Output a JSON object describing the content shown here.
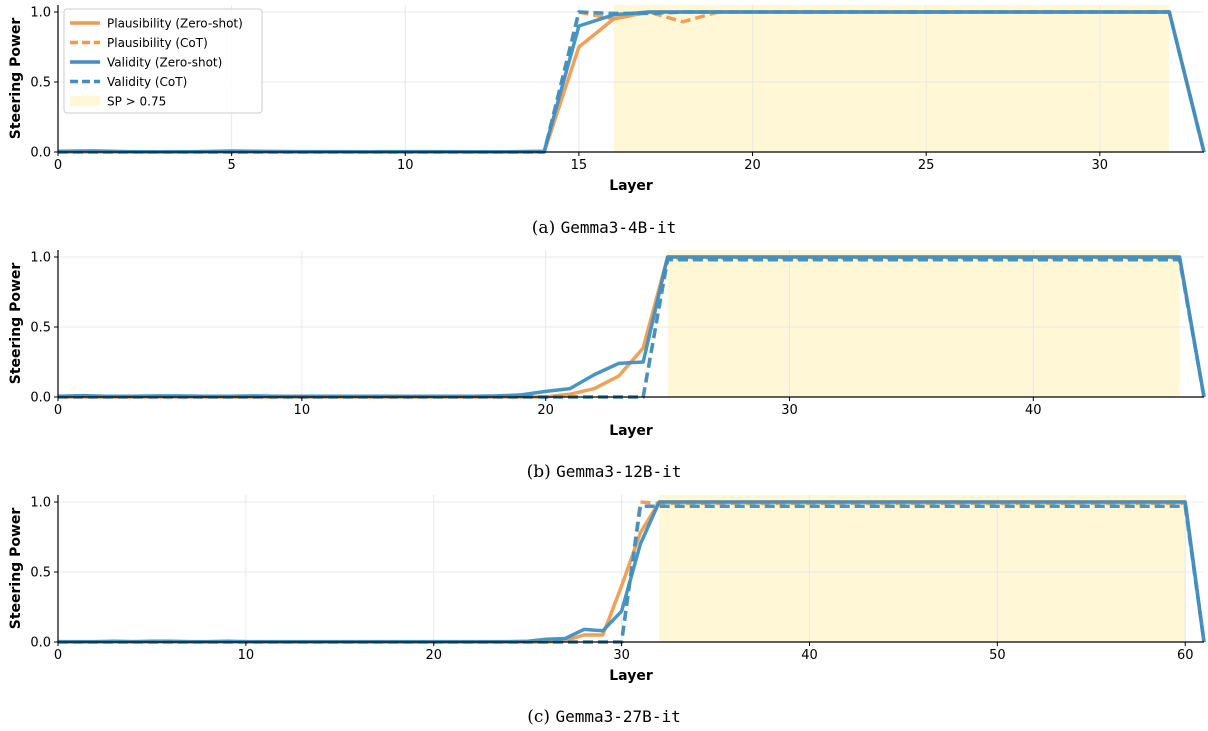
{
  "legend": {
    "items": [
      {
        "label": "Plausibility (Zero-shot)",
        "style": "solid",
        "color": "#ed9c4f"
      },
      {
        "label": "Plausibility (CoT)",
        "style": "dashed",
        "color": "#ed9c4f"
      },
      {
        "label": "Validity (Zero-shot)",
        "style": "solid",
        "color": "#3f8fc2"
      },
      {
        "label": "Validity (CoT)",
        "style": "dashed",
        "color": "#3f8fc2"
      },
      {
        "label": "SP > 0.75",
        "style": "patch",
        "color": "#fff7d6"
      }
    ]
  },
  "colors": {
    "plausibility": "#ed9c4f",
    "validity": "#3f8fc2",
    "highlight": "#fff7d6",
    "grid": "#e8e8e8"
  },
  "chart_data": [
    {
      "type": "line",
      "caption_prefix": "(a) ",
      "caption_model": "Gemma3-4B-it",
      "xlabel": "Layer",
      "ylabel": "Steering Power",
      "xlim": [
        0,
        33
      ],
      "ylim": [
        0,
        1.05
      ],
      "xticks": [
        0,
        5,
        10,
        15,
        20,
        25,
        30
      ],
      "yticks": [
        0.0,
        0.5,
        1.0
      ],
      "grid": true,
      "legend_position": "top-left",
      "highlight": {
        "label": "SP > 0.75",
        "x_range": [
          16,
          32
        ]
      },
      "x": [
        0,
        1,
        2,
        3,
        4,
        5,
        6,
        7,
        8,
        9,
        10,
        11,
        12,
        13,
        14,
        15,
        16,
        17,
        18,
        19,
        20,
        21,
        22,
        23,
        24,
        25,
        26,
        27,
        28,
        29,
        30,
        31,
        32,
        33
      ],
      "series": [
        {
          "name": "Plausibility (Zero-shot)",
          "style": "solid",
          "color": "plausibility",
          "values": [
            0,
            0,
            0,
            0,
            0,
            0,
            0,
            0,
            0,
            0,
            0,
            0,
            0,
            0,
            0,
            0.75,
            0.95,
            1,
            1,
            1,
            1,
            1,
            1,
            1,
            1,
            1,
            1,
            1,
            1,
            1,
            1,
            1,
            1,
            0
          ]
        },
        {
          "name": "Plausibility (CoT)",
          "style": "dashed",
          "color": "plausibility",
          "values": [
            0,
            0,
            0,
            0,
            0,
            0,
            0,
            0,
            0,
            0,
            0,
            0,
            0,
            0,
            0,
            1,
            0.95,
            1,
            0.93,
            1,
            1,
            1,
            1,
            1,
            1,
            1,
            1,
            1,
            1,
            1,
            1,
            1,
            1,
            0
          ]
        },
        {
          "name": "Validity (Zero-shot)",
          "style": "solid",
          "color": "validity",
          "values": [
            0.005,
            0.008,
            0.003,
            0.002,
            0.003,
            0.007,
            0.004,
            0.003,
            0.003,
            0.002,
            0.003,
            0.003,
            0.002,
            0.002,
            0.005,
            0.9,
            0.98,
            1,
            1,
            1,
            1,
            1,
            1,
            1,
            1,
            1,
            1,
            1,
            1,
            1,
            1,
            1,
            1,
            0
          ]
        },
        {
          "name": "Validity (CoT)",
          "style": "dashed",
          "color": "validity",
          "values": [
            0,
            0,
            0,
            0,
            0,
            0,
            0,
            0,
            0,
            0,
            0,
            0,
            0,
            0,
            0,
            1,
            0.99,
            0.99,
            1,
            1,
            1,
            1,
            1,
            1,
            1,
            1,
            1,
            1,
            1,
            1,
            1,
            1,
            1,
            0
          ]
        }
      ]
    },
    {
      "type": "line",
      "caption_prefix": "(b) ",
      "caption_model": "Gemma3-12B-it",
      "xlabel": "Layer",
      "ylabel": "Steering Power",
      "xlim": [
        0,
        47
      ],
      "ylim": [
        0,
        1.05
      ],
      "xticks": [
        0,
        10,
        20,
        30,
        40
      ],
      "yticks": [
        0.0,
        0.5,
        1.0
      ],
      "grid": true,
      "highlight": {
        "label": "SP > 0.75",
        "x_range": [
          25,
          46
        ]
      },
      "x": [
        0,
        1,
        2,
        3,
        4,
        5,
        6,
        7,
        8,
        9,
        10,
        11,
        12,
        13,
        14,
        15,
        16,
        17,
        18,
        19,
        20,
        21,
        22,
        23,
        24,
        25,
        26,
        27,
        28,
        29,
        30,
        31,
        32,
        33,
        34,
        35,
        36,
        37,
        38,
        39,
        40,
        41,
        42,
        43,
        44,
        45,
        46,
        47
      ],
      "series": [
        {
          "name": "Plausibility (Zero-shot)",
          "style": "solid",
          "color": "plausibility",
          "values": [
            0,
            0,
            0,
            0,
            0,
            0,
            0,
            0,
            0,
            0,
            0,
            0,
            0,
            0,
            0,
            0,
            0,
            0,
            0,
            0,
            0,
            0.02,
            0.06,
            0.15,
            0.35,
            1,
            1,
            1,
            1,
            1,
            1,
            1,
            1,
            1,
            1,
            1,
            1,
            1,
            1,
            1,
            1,
            1,
            1,
            1,
            1,
            1,
            1,
            0
          ]
        },
        {
          "name": "Plausibility (CoT)",
          "style": "dashed",
          "color": "plausibility",
          "values": [
            0,
            0,
            0,
            0,
            0,
            0,
            0,
            0,
            0,
            0,
            0,
            0,
            0,
            0,
            0,
            0,
            0,
            0,
            0,
            0,
            0,
            0,
            0,
            0,
            0,
            0.99,
            0.99,
            0.99,
            0.99,
            0.99,
            0.99,
            0.99,
            0.99,
            0.99,
            0.99,
            0.99,
            0.99,
            0.99,
            0.99,
            0.99,
            0.99,
            0.99,
            0.99,
            0.99,
            0.99,
            0.99,
            0.99,
            0
          ]
        },
        {
          "name": "Validity (Zero-shot)",
          "style": "solid",
          "color": "validity",
          "values": [
            0.005,
            0.01,
            0.005,
            0.005,
            0.008,
            0.008,
            0.005,
            0.005,
            0.008,
            0.005,
            0.005,
            0.005,
            0.005,
            0.005,
            0.005,
            0.005,
            0.005,
            0.005,
            0.008,
            0.015,
            0.04,
            0.06,
            0.16,
            0.24,
            0.25,
            1,
            1,
            1,
            1,
            1,
            1,
            1,
            1,
            1,
            1,
            1,
            1,
            1,
            1,
            1,
            1,
            1,
            1,
            1,
            1,
            1,
            1,
            0
          ]
        },
        {
          "name": "Validity (CoT)",
          "style": "dashed",
          "color": "validity",
          "values": [
            0,
            0,
            0,
            0,
            0,
            0,
            0,
            0,
            0,
            0,
            0,
            0,
            0,
            0,
            0,
            0,
            0,
            0,
            0,
            0,
            0,
            0,
            0,
            0,
            0,
            0.98,
            0.98,
            0.98,
            0.98,
            0.98,
            0.98,
            0.98,
            0.98,
            0.98,
            0.98,
            0.98,
            0.98,
            0.98,
            0.98,
            0.98,
            0.98,
            0.98,
            0.98,
            0.98,
            0.98,
            0.98,
            0.98,
            0
          ]
        }
      ]
    },
    {
      "type": "line",
      "caption_prefix": "(c) ",
      "caption_model": "Gemma3-27B-it",
      "xlabel": "Layer",
      "ylabel": "Steering Power",
      "xlim": [
        0,
        61
      ],
      "ylim": [
        0,
        1.05
      ],
      "xticks": [
        0,
        10,
        20,
        30,
        40,
        50,
        60
      ],
      "yticks": [
        0.0,
        0.5,
        1.0
      ],
      "grid": true,
      "highlight": {
        "label": "SP > 0.75",
        "x_range": [
          32,
          60
        ]
      },
      "x": [
        0,
        1,
        2,
        3,
        4,
        5,
        6,
        7,
        8,
        9,
        10,
        11,
        12,
        13,
        14,
        15,
        16,
        17,
        18,
        19,
        20,
        21,
        22,
        23,
        24,
        25,
        26,
        27,
        28,
        29,
        30,
        31,
        32,
        33,
        34,
        35,
        36,
        37,
        38,
        39,
        40,
        41,
        42,
        43,
        44,
        45,
        46,
        47,
        48,
        49,
        50,
        51,
        52,
        53,
        54,
        55,
        56,
        57,
        58,
        59,
        60,
        61
      ],
      "series": [
        {
          "name": "Plausibility (Zero-shot)",
          "style": "solid",
          "color": "plausibility",
          "values": [
            0,
            0,
            0,
            0,
            0,
            0,
            0,
            0,
            0,
            0,
            0,
            0,
            0,
            0,
            0,
            0,
            0,
            0,
            0,
            0,
            0,
            0,
            0,
            0,
            0,
            0,
            0,
            0.01,
            0.05,
            0.05,
            0.4,
            0.78,
            1,
            1,
            1,
            1,
            1,
            1,
            1,
            1,
            1,
            1,
            1,
            1,
            1,
            1,
            1,
            1,
            1,
            1,
            1,
            1,
            1,
            1,
            1,
            1,
            1,
            1,
            1,
            1,
            1,
            0
          ]
        },
        {
          "name": "Plausibility (CoT)",
          "style": "dashed",
          "color": "plausibility",
          "values": [
            0,
            0,
            0,
            0,
            0,
            0,
            0,
            0,
            0,
            0,
            0,
            0,
            0,
            0,
            0,
            0,
            0,
            0,
            0,
            0,
            0,
            0,
            0,
            0,
            0,
            0,
            0,
            0,
            0,
            0,
            0,
            1,
            0.99,
            0.99,
            0.99,
            0.99,
            0.99,
            0.99,
            0.99,
            0.99,
            0.99,
            0.99,
            0.99,
            0.99,
            0.99,
            0.99,
            0.99,
            0.99,
            0.99,
            0.99,
            0.99,
            0.99,
            0.99,
            0.99,
            0.99,
            0.99,
            0.99,
            0.99,
            0.99,
            0.99,
            0.99,
            0
          ]
        },
        {
          "name": "Validity (Zero-shot)",
          "style": "solid",
          "color": "validity",
          "values": [
            0.003,
            0.003,
            0.003,
            0.005,
            0.003,
            0.005,
            0.005,
            0.003,
            0.003,
            0.005,
            0.003,
            0.003,
            0.003,
            0.003,
            0.003,
            0.003,
            0.003,
            0.003,
            0.003,
            0.003,
            0.003,
            0.003,
            0.003,
            0.003,
            0.003,
            0.005,
            0.02,
            0.025,
            0.09,
            0.08,
            0.22,
            0.7,
            1,
            1,
            1,
            1,
            1,
            1,
            1,
            1,
            1,
            1,
            1,
            1,
            1,
            1,
            1,
            1,
            1,
            1,
            1,
            1,
            1,
            1,
            1,
            1,
            1,
            1,
            1,
            1,
            1,
            0
          ]
        },
        {
          "name": "Validity (CoT)",
          "style": "dashed",
          "color": "validity",
          "values": [
            0,
            0,
            0,
            0,
            0,
            0,
            0,
            0,
            0,
            0,
            0,
            0,
            0,
            0,
            0,
            0,
            0,
            0,
            0,
            0,
            0,
            0,
            0,
            0,
            0,
            0,
            0,
            0,
            0,
            0,
            0,
            0.97,
            0.97,
            0.97,
            0.97,
            0.97,
            0.97,
            0.97,
            0.97,
            0.97,
            0.97,
            0.97,
            0.97,
            0.97,
            0.97,
            0.97,
            0.97,
            0.97,
            0.97,
            0.97,
            0.97,
            0.97,
            0.97,
            0.97,
            0.97,
            0.97,
            0.97,
            0.97,
            0.97,
            0.97,
            0.97,
            0
          ]
        }
      ]
    }
  ]
}
